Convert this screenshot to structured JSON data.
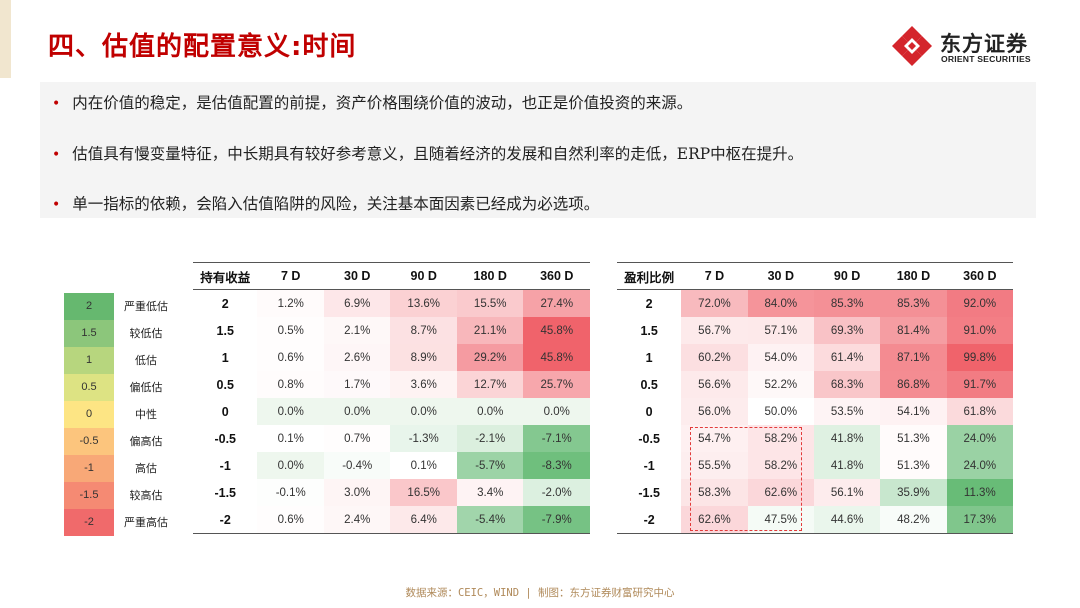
{
  "page_title": "四、估值的配置意义:时间",
  "logo": {
    "name_cn": "东方证券",
    "name_en": "ORIENT SECURITIES",
    "colors": {
      "mark": "#d4252c"
    }
  },
  "bullets": [
    "内在价值的稳定，是估值配置的前提，资产价格围绕价值的波动，也正是价值投资的来源。",
    "估值具有慢变量特征，中长期具有较好参考意义，且随着经济的发展和自然利率的走低，ERP中枢在提升。",
    "单一指标的依赖，会陷入估值陷阱的风险，关注基本面因素已经成为必选项。"
  ],
  "legend": [
    {
      "value": "2",
      "label": "严重低估",
      "color": "#66b86f"
    },
    {
      "value": "1.5",
      "label": "较低估",
      "color": "#8cc67b"
    },
    {
      "value": "1",
      "label": "低估",
      "color": "#b7d67e"
    },
    {
      "value": "0.5",
      "label": "偏低估",
      "color": "#dde383"
    },
    {
      "value": "0",
      "label": "中性",
      "color": "#fde584"
    },
    {
      "value": "-0.5",
      "label": "偏高估",
      "color": "#fcc57d"
    },
    {
      "value": "-1",
      "label": "高估",
      "color": "#f8a877"
    },
    {
      "value": "-1.5",
      "label": "较高估",
      "color": "#f58a73"
    },
    {
      "value": "-2",
      "label": "严重高估",
      "color": "#f06a6b"
    }
  ],
  "return_table": {
    "header": [
      "持有收益",
      "7 D",
      "30 D",
      "90 D",
      "180 D",
      "360 D"
    ],
    "rows": [
      {
        "label": "2",
        "values": [
          "1.2%",
          "6.9%",
          "13.6%",
          "15.5%",
          "27.4%"
        ]
      },
      {
        "label": "1.5",
        "values": [
          "0.5%",
          "2.1%",
          "8.7%",
          "21.1%",
          "45.8%"
        ]
      },
      {
        "label": "1",
        "values": [
          "0.6%",
          "2.6%",
          "8.9%",
          "29.2%",
          "45.8%"
        ]
      },
      {
        "label": "0.5",
        "values": [
          "0.8%",
          "1.7%",
          "3.6%",
          "12.7%",
          "25.7%"
        ]
      },
      {
        "label": "0",
        "values": [
          "0.0%",
          "0.0%",
          "0.0%",
          "0.0%",
          "0.0%"
        ]
      },
      {
        "label": "-0.5",
        "values": [
          "0.1%",
          "0.7%",
          "-1.3%",
          "-2.1%",
          "-7.1%"
        ]
      },
      {
        "label": "-1",
        "values": [
          "0.0%",
          "-0.4%",
          "0.1%",
          "-5.7%",
          "-8.3%"
        ]
      },
      {
        "label": "-1.5",
        "values": [
          "-0.1%",
          "3.0%",
          "16.5%",
          "3.4%",
          "-2.0%"
        ]
      },
      {
        "label": "-2",
        "values": [
          "0.6%",
          "2.4%",
          "6.4%",
          "-5.4%",
          "-7.9%"
        ]
      }
    ]
  },
  "win_table": {
    "header": [
      "盈利比例",
      "7 D",
      "30 D",
      "90 D",
      "180 D",
      "360 D"
    ],
    "rows": [
      {
        "label": "2",
        "values": [
          "72.0%",
          "84.0%",
          "85.3%",
          "85.3%",
          "92.0%"
        ]
      },
      {
        "label": "1.5",
        "values": [
          "56.7%",
          "57.1%",
          "69.3%",
          "81.4%",
          "91.0%"
        ]
      },
      {
        "label": "1",
        "values": [
          "60.2%",
          "54.0%",
          "61.4%",
          "87.1%",
          "99.8%"
        ]
      },
      {
        "label": "0.5",
        "values": [
          "56.6%",
          "52.2%",
          "68.3%",
          "86.8%",
          "91.7%"
        ]
      },
      {
        "label": "0",
        "values": [
          "56.0%",
          "50.0%",
          "53.5%",
          "54.1%",
          "61.8%"
        ]
      },
      {
        "label": "-0.5",
        "values": [
          "54.7%",
          "58.2%",
          "41.8%",
          "51.3%",
          "24.0%"
        ]
      },
      {
        "label": "-1",
        "values": [
          "55.5%",
          "58.2%",
          "41.8%",
          "51.3%",
          "24.0%"
        ]
      },
      {
        "label": "-1.5",
        "values": [
          "58.3%",
          "62.6%",
          "56.1%",
          "35.9%",
          "11.3%"
        ]
      },
      {
        "label": "-2",
        "values": [
          "62.6%",
          "47.5%",
          "44.6%",
          "48.2%",
          "17.3%"
        ]
      }
    ]
  },
  "footer": "数据来源：CEIC，WIND  | 制图：东方证券财富研究中心"
}
